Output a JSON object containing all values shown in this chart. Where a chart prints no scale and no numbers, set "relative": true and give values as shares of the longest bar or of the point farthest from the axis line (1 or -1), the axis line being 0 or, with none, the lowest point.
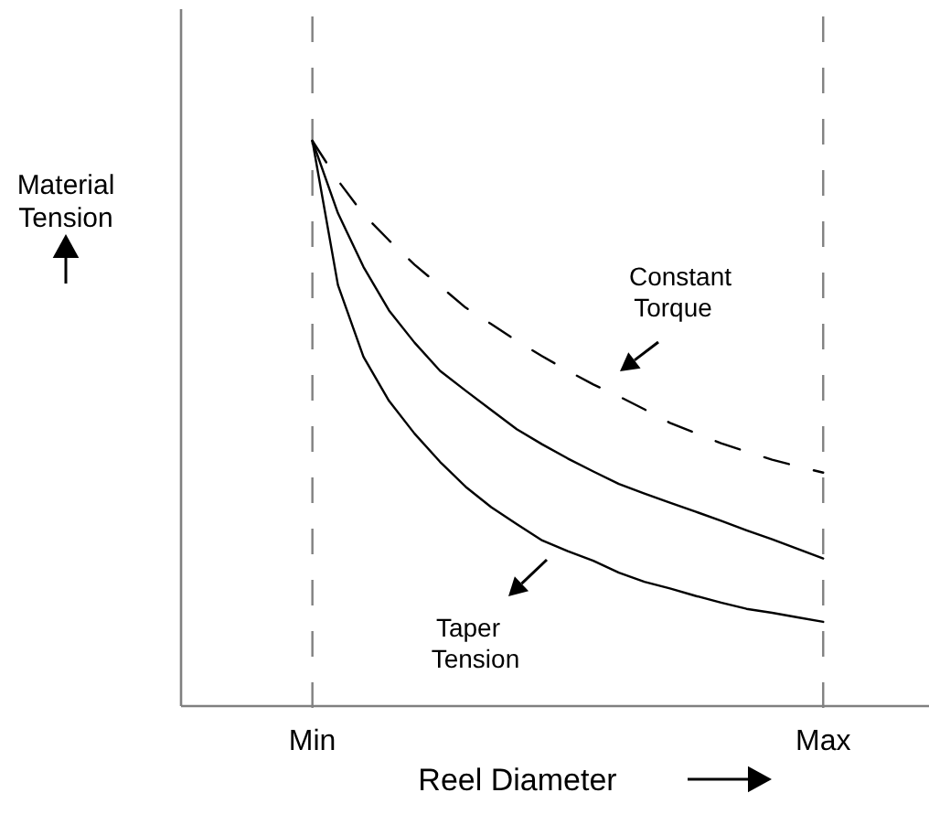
{
  "chart_data": {
    "type": "line",
    "relative": true,
    "xlabel": "Reel Diameter",
    "ylabel": "Material Tension",
    "tick_labels": "x",
    "grid": "x",
    "marker": "none",
    "categories": [
      null,
      null,
      null,
      null,
      null,
      "Min",
      null,
      null,
      null,
      null,
      null,
      null,
      null,
      null,
      null,
      null,
      null,
      null,
      null,
      null,
      null,
      null,
      null,
      null,
      null,
      "Max",
      null,
      null,
      null,
      null
    ],
    "series": [
      {
        "name": "Constant Torque",
        "color": "#000000",
        "line_style": "dashed",
        "values": [
          null,
          null,
          null,
          null,
          null,
          1.0,
          0.93,
          0.87,
          0.824,
          0.781,
          0.743,
          0.705,
          0.676,
          0.646,
          0.619,
          0.593,
          0.569,
          0.548,
          0.525,
          0.501,
          0.483,
          0.465,
          0.45,
          0.436,
          0.424,
          0.413,
          null,
          null,
          null,
          null
        ]
      },
      {
        "color": "#000000",
        "line_style": "solid",
        "values": [
          null,
          null,
          null,
          null,
          null,
          1.0,
          0.872,
          0.777,
          0.7,
          0.643,
          0.593,
          0.558,
          0.524,
          0.49,
          0.463,
          0.438,
          0.415,
          0.393,
          0.376,
          0.36,
          0.344,
          0.328,
          0.311,
          0.295,
          0.278,
          0.261,
          null,
          null,
          null,
          null
        ]
      },
      {
        "color": "#000000",
        "line_style": "solid",
        "values": [
          null,
          null,
          null,
          null,
          null,
          1.0,
          0.745,
          0.618,
          0.54,
          0.482,
          0.432,
          0.388,
          0.352,
          0.322,
          0.293,
          0.274,
          0.257,
          0.236,
          0.22,
          0.208,
          0.195,
          0.183,
          0.172,
          0.165,
          0.157,
          0.149,
          null,
          null,
          null,
          null
        ]
      }
    ],
    "annotations": [
      "Taper Tension"
    ]
  }
}
